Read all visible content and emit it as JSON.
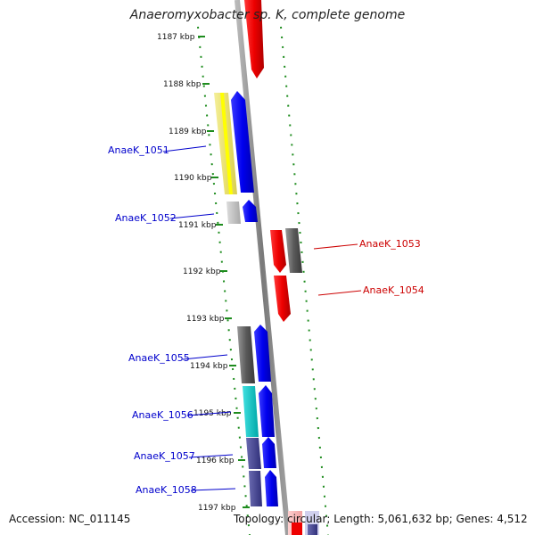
{
  "title": "Anaeromyxobacter sp. K, complete genome",
  "footer": {
    "accession": "Accession: NC_011145",
    "topology": "Topology: circular; Length: 5,061,632 bp; Genes: 4,512"
  },
  "ticks": [
    "1187 kbp",
    "1188 kbp",
    "1189 kbp",
    "1190 kbp",
    "1191 kbp",
    "1192 kbp",
    "1193 kbp",
    "1194 kbp",
    "1195 kbp",
    "1196 kbp",
    "1197 kbp"
  ],
  "labels": {
    "left": [
      "AnaeK_1051",
      "AnaeK_1052",
      "AnaeK_1055",
      "AnaeK_1056",
      "AnaeK_1057",
      "AnaeK_1058"
    ],
    "right": [
      "AnaeK_1053",
      "AnaeK_1054"
    ]
  },
  "colors": {
    "backbone": "#8a8a8a",
    "grid": "#1e8c1e",
    "left_label": "#0000cc",
    "right_label": "#cc0000",
    "forward_gene": "#0000ff",
    "reverse_gene": "#ff0000"
  }
}
